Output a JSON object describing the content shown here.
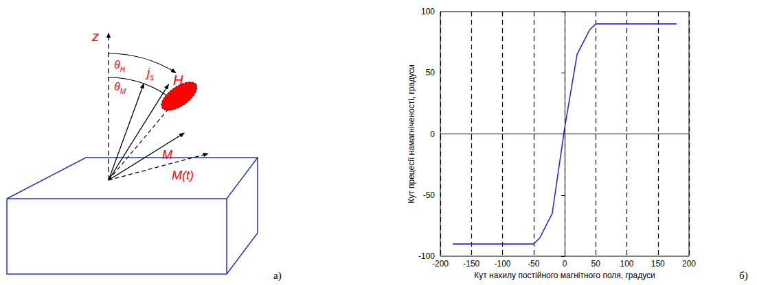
{
  "chart_data": {
    "type": "line",
    "panel_label": "б)",
    "x_label": "Кут нахилу постійного магнітного поля, градуси",
    "y_label": "Кут прецесії намагніченості, градуси",
    "x": [
      -180,
      -50,
      -40,
      -20,
      0,
      20,
      40,
      50,
      180
    ],
    "values": [
      -90,
      -90,
      -85,
      -65,
      5,
      65,
      85,
      90,
      90
    ],
    "color": "#2a2ae0",
    "marker": "none",
    "line_style": "solid",
    "xlim": [
      -200,
      200
    ],
    "xticks": [
      -200,
      -150,
      -100,
      -50,
      0,
      50,
      100,
      150,
      200
    ],
    "ylim": [
      -100,
      100
    ],
    "yticks": [
      -100,
      -50,
      0,
      50,
      100
    ],
    "grid": "x"
  },
  "diagram": {
    "panel_label": "а)",
    "labels": {
      "axis": {
        "symbol": "z"
      },
      "field_angle": {
        "symbol": "θ",
        "subscript": "H"
      },
      "magnetization_angle": {
        "symbol": "θ",
        "subscript": "M"
      },
      "current": {
        "symbol": "j",
        "subscript": "s"
      },
      "field": {
        "symbol": "H"
      },
      "magnetization": {
        "symbol": "M"
      },
      "precessing_magnetization": {
        "symbol": "M(t)"
      }
    }
  }
}
